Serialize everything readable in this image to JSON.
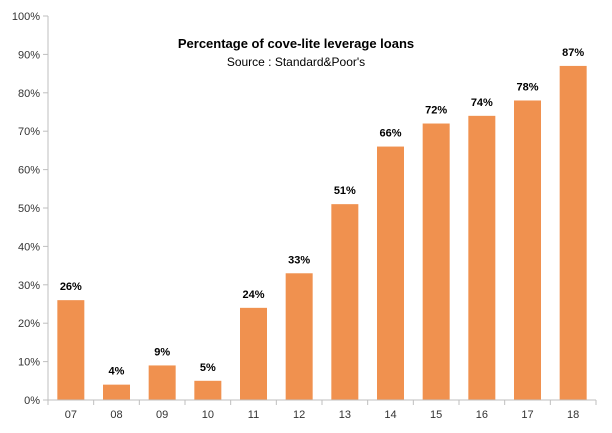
{
  "chart_data": {
    "type": "bar",
    "title": "Percentage of cove-lite leverage loans",
    "subtitle": "Source : Standard&Poor's",
    "categories": [
      "07",
      "08",
      "09",
      "10",
      "11",
      "12",
      "13",
      "14",
      "15",
      "16",
      "17",
      "18"
    ],
    "values": [
      26,
      4,
      9,
      5,
      24,
      33,
      51,
      66,
      72,
      74,
      78,
      87
    ],
    "data_labels": [
      "26%",
      "4%",
      "9%",
      "5%",
      "24%",
      "33%",
      "51%",
      "66%",
      "72%",
      "74%",
      "78%",
      "87%"
    ],
    "y_ticks": [
      "0%",
      "10%",
      "20%",
      "30%",
      "40%",
      "50%",
      "60%",
      "70%",
      "80%",
      "90%",
      "100%"
    ],
    "ylim": [
      0,
      100
    ],
    "xlabel": "",
    "ylabel": "",
    "grid": false,
    "legend": "none",
    "bar_color": "#F0914F",
    "axis_color": "#BFBFBF"
  }
}
